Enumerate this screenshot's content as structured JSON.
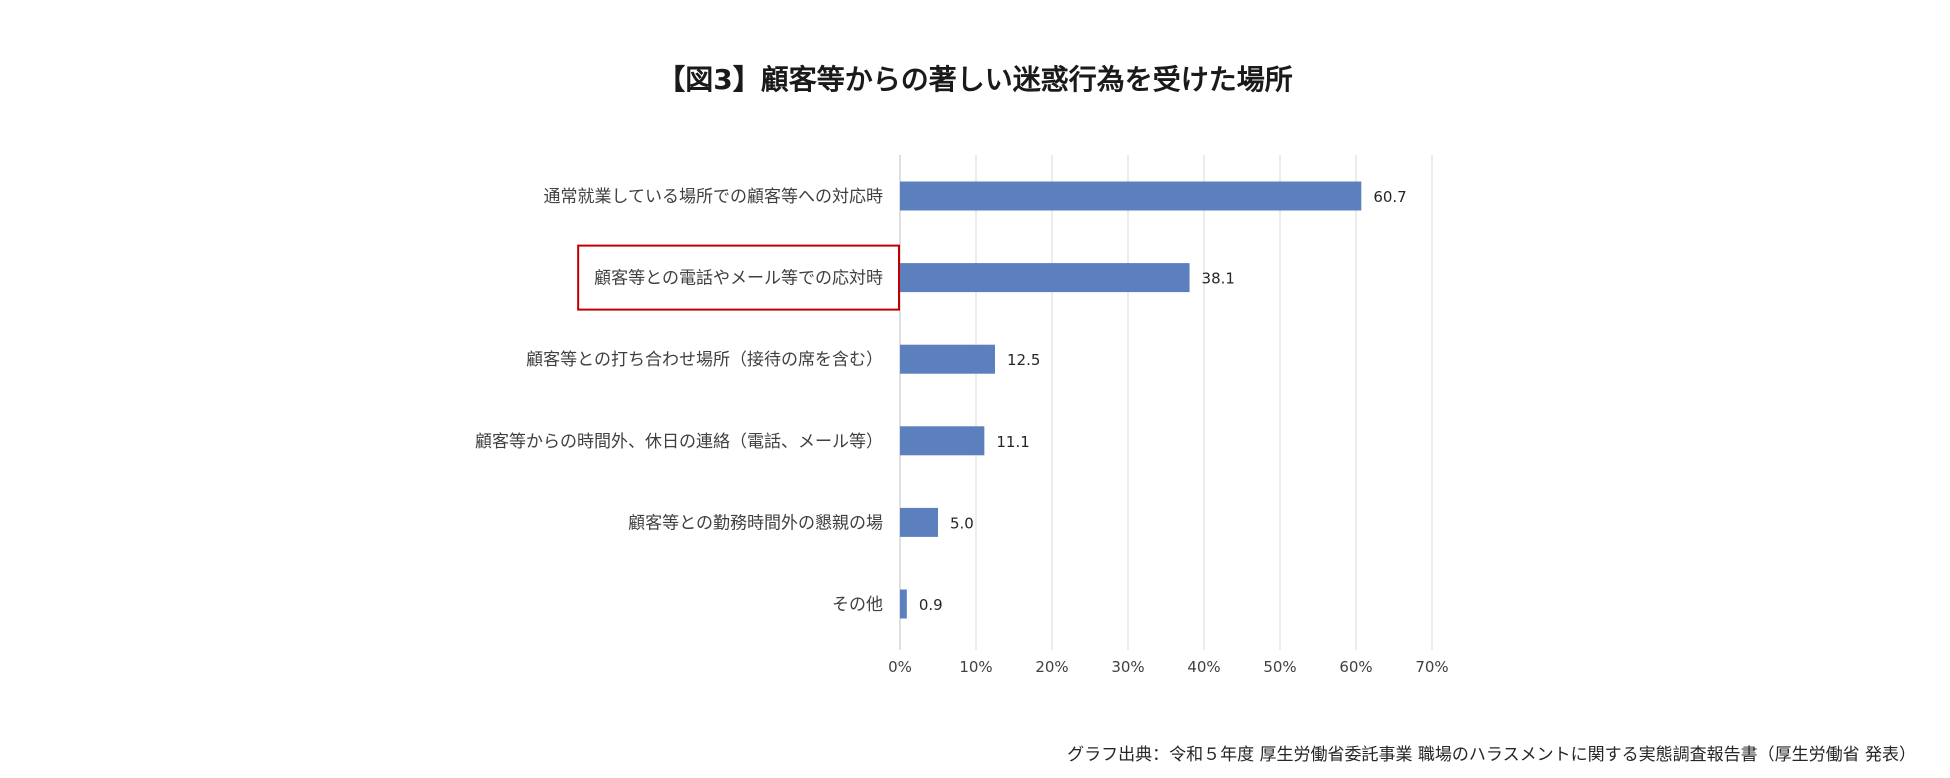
{
  "chart_data": {
    "type": "bar",
    "orientation": "horizontal",
    "title": "【図3】顧客等からの著しい迷惑行為を受けた場所",
    "categories": [
      "通常就業している場所での顧客等への対応時",
      "顧客等との電話やメール等での応対時",
      "顧客等との打ち合わせ場所（接待の席を含む）",
      "顧客等からの時間外、休日の連絡（電話、メール等）",
      "顧客等との勤務時間外の懇親の場",
      "その他"
    ],
    "values": [
      60.7,
      38.1,
      12.5,
      11.1,
      5.0,
      0.9
    ],
    "value_labels": [
      "60.7",
      "38.1",
      "12.5",
      "11.1",
      "5.0",
      "0.9"
    ],
    "xlim": [
      0,
      70
    ],
    "x_ticks": [
      "0%",
      "10%",
      "20%",
      "30%",
      "40%",
      "50%",
      "60%",
      "70%"
    ],
    "grid": true,
    "bar_color": "#5b80bd",
    "highlighted_category_index": 1,
    "highlight_color": "#c00000"
  },
  "source": "グラフ出典：令和５年度 厚生労働省委託事業 職場のハラスメントに関する実態調査報告書（厚生労働省 発表）"
}
